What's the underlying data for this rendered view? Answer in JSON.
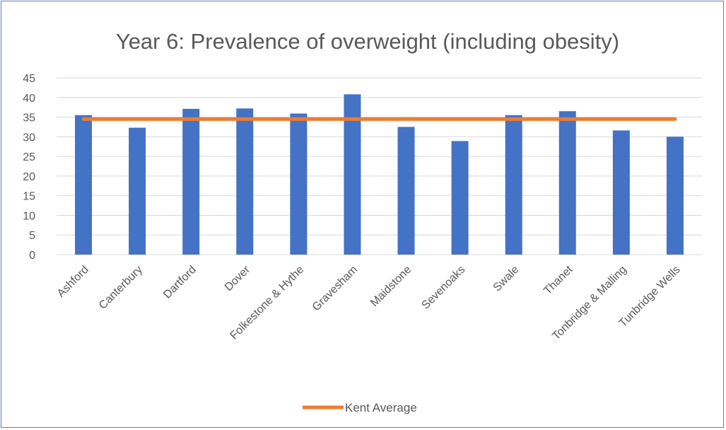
{
  "chart_data": {
    "type": "bar",
    "title": "Year 6: Prevalence of overweight (including obesity)",
    "categories": [
      "Ashford",
      "Canterbury",
      "Dartford",
      "Dover",
      "Folkestone & Hythe",
      "Gravesham",
      "Maidstone",
      "Sevenoaks",
      "Swale",
      "Thanet",
      "Tonbridge & Malling",
      "Tunbridge Wells"
    ],
    "series": [
      {
        "values": [
          35.5,
          32.3,
          37.1,
          37.2,
          35.9,
          40.8,
          32.5,
          28.9,
          35.5,
          36.5,
          31.6,
          30.0
        ],
        "color": "#4472c4"
      },
      {
        "name": "Kent Average",
        "type": "line",
        "values": [
          34.5,
          34.5,
          34.5,
          34.5,
          34.5,
          34.5,
          34.5,
          34.5,
          34.5,
          34.5,
          34.5,
          34.5
        ],
        "color": "#ed7d31"
      }
    ],
    "ylim": [
      0,
      45
    ],
    "yticks": [
      0,
      5,
      10,
      15,
      20,
      25,
      30,
      35,
      40,
      45
    ],
    "xlabel": "",
    "ylabel": "",
    "grid": true,
    "legend": "bottom"
  }
}
